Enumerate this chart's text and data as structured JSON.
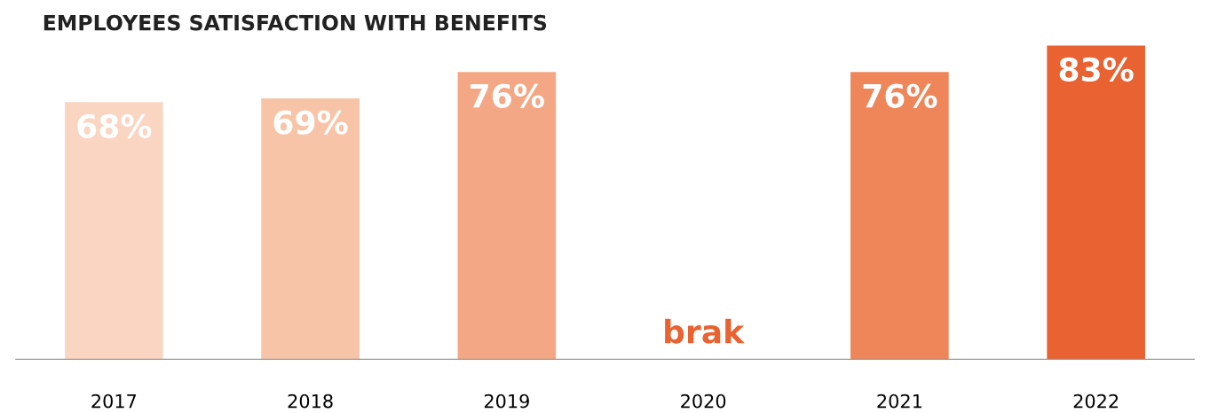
{
  "chart_data": {
    "type": "bar",
    "title": "EMPLOYEES SATISFACTION WITH BENEFITS",
    "categories": [
      "2017",
      "2018",
      "2019",
      "2020",
      "2021",
      "2022"
    ],
    "values": [
      68,
      69,
      76,
      null,
      76,
      83
    ],
    "value_labels": [
      "68%",
      "69%",
      "76%",
      null,
      "76%",
      "83%"
    ],
    "colors": [
      "#fad5c2",
      "#f8c4a8",
      "#f4a784",
      "#f4a784",
      "#ee8659",
      "#e96232"
    ],
    "annotations": [
      "brak"
    ]
  }
}
